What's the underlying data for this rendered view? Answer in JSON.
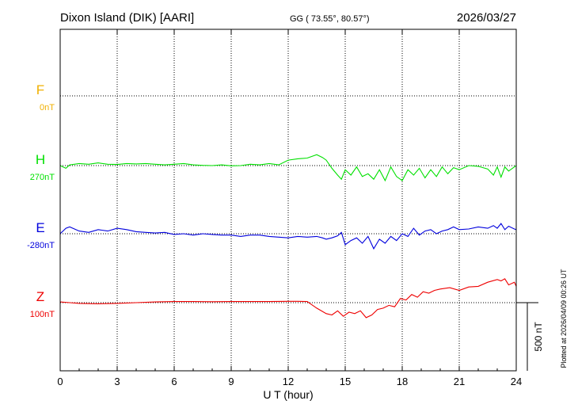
{
  "header": {
    "station": "Dixon Island (DIK)  [AARI]",
    "coords": "GG ( 73.55°,  80.57°)",
    "date": "2026/03/27"
  },
  "footer": {
    "plotted": "Plotted at 2026/04/09 00:26 UT"
  },
  "chart_data": {
    "type": "line",
    "xlabel": "U T (hour)",
    "xlim": [
      0,
      24
    ],
    "xticks": [
      "0",
      "3",
      "6",
      "9",
      "12",
      "15",
      "18",
      "21",
      "24"
    ],
    "grid": true,
    "scale_bar": {
      "label": "500 nT",
      "value_nT": 500
    },
    "series": [
      {
        "name": "F",
        "offset_label": "0nT",
        "color": "#f0b000",
        "baseline": 0,
        "x": [],
        "y": []
      },
      {
        "name": "H",
        "offset_label": "270nT",
        "color": "#00e000",
        "baseline": 270,
        "x": [
          0,
          0.3,
          0.5,
          1,
          1.5,
          2,
          2.5,
          3,
          3.5,
          4,
          4.5,
          5,
          5.5,
          6,
          6.5,
          7,
          7.5,
          8,
          8.5,
          9,
          9.5,
          10,
          10.5,
          11,
          11.5,
          12,
          12.5,
          13,
          13.5,
          13.8,
          14,
          14.3,
          14.6,
          14.8,
          15,
          15.3,
          15.6,
          15.9,
          16.2,
          16.5,
          16.8,
          17.1,
          17.4,
          17.7,
          18,
          18.3,
          18.6,
          18.9,
          19.2,
          19.5,
          19.8,
          20.1,
          20.4,
          20.7,
          21,
          21.5,
          22,
          22.5,
          22.8,
          23,
          23.2,
          23.4,
          23.6,
          23.9,
          24
        ],
        "y": [
          270,
          250,
          275,
          285,
          280,
          290,
          280,
          278,
          285,
          282,
          285,
          280,
          275,
          280,
          285,
          275,
          272,
          270,
          275,
          268,
          270,
          280,
          275,
          285,
          275,
          310,
          320,
          325,
          350,
          330,
          310,
          250,
          200,
          170,
          240,
          200,
          260,
          190,
          210,
          170,
          240,
          160,
          260,
          190,
          160,
          240,
          200,
          250,
          180,
          240,
          190,
          260,
          210,
          255,
          240,
          270,
          265,
          245,
          200,
          260,
          185,
          260,
          230,
          260,
          270
        ]
      },
      {
        "name": "E",
        "offset_label": "-280nT",
        "color": "#0000dd",
        "baseline": -280,
        "x": [
          0,
          0.3,
          0.5,
          1,
          1.5,
          2,
          2.5,
          3,
          3.5,
          4,
          4.5,
          5,
          5.5,
          6,
          6.5,
          7,
          7.5,
          8,
          8.5,
          9,
          9.5,
          10,
          10.5,
          11,
          11.5,
          12,
          12.5,
          13,
          13.5,
          13.8,
          14,
          14.3,
          14.6,
          14.8,
          15,
          15.3,
          15.6,
          15.9,
          16.2,
          16.5,
          16.8,
          17.1,
          17.4,
          17.7,
          18,
          18.3,
          18.6,
          18.9,
          19.2,
          19.5,
          19.8,
          20.1,
          20.4,
          20.7,
          21,
          21.5,
          22,
          22.5,
          22.8,
          23,
          23.2,
          23.4,
          23.6,
          23.9,
          24
        ],
        "y": [
          -280,
          -240,
          -230,
          -260,
          -270,
          -250,
          -260,
          -240,
          -250,
          -265,
          -270,
          -275,
          -270,
          -285,
          -280,
          -290,
          -280,
          -285,
          -290,
          -290,
          -300,
          -290,
          -290,
          -300,
          -305,
          -310,
          -300,
          -305,
          -300,
          -310,
          -320,
          -310,
          -295,
          -270,
          -360,
          -330,
          -310,
          -350,
          -300,
          -390,
          -320,
          -350,
          -300,
          -330,
          -280,
          -300,
          -240,
          -290,
          -260,
          -250,
          -280,
          -260,
          -250,
          -230,
          -250,
          -245,
          -230,
          -240,
          -220,
          -240,
          -205,
          -250,
          -225,
          -245,
          -250
        ]
      },
      {
        "name": "Z",
        "offset_label": "100nT",
        "color": "#ee0000",
        "baseline": 100,
        "x": [
          0,
          0.5,
          1,
          2,
          3,
          4,
          5,
          6,
          7,
          8,
          9,
          10,
          11,
          12,
          12.5,
          13,
          13.5,
          14,
          14.3,
          14.6,
          14.9,
          15.2,
          15.5,
          15.8,
          16.1,
          16.4,
          16.7,
          17,
          17.3,
          17.6,
          17.9,
          18.2,
          18.5,
          18.8,
          19.1,
          19.4,
          19.7,
          20,
          20.5,
          21,
          21.5,
          22,
          22.5,
          23,
          23.2,
          23.4,
          23.6,
          23.9,
          24
        ],
        "y": [
          105,
          100,
          95,
          92,
          95,
          100,
          105,
          108,
          108,
          107,
          108,
          108,
          108,
          110,
          110,
          108,
          60,
          20,
          10,
          40,
          0,
          30,
          20,
          40,
          -10,
          10,
          50,
          60,
          80,
          70,
          130,
          120,
          160,
          140,
          180,
          170,
          190,
          200,
          210,
          190,
          215,
          220,
          250,
          270,
          260,
          275,
          230,
          250,
          220
        ]
      }
    ]
  }
}
